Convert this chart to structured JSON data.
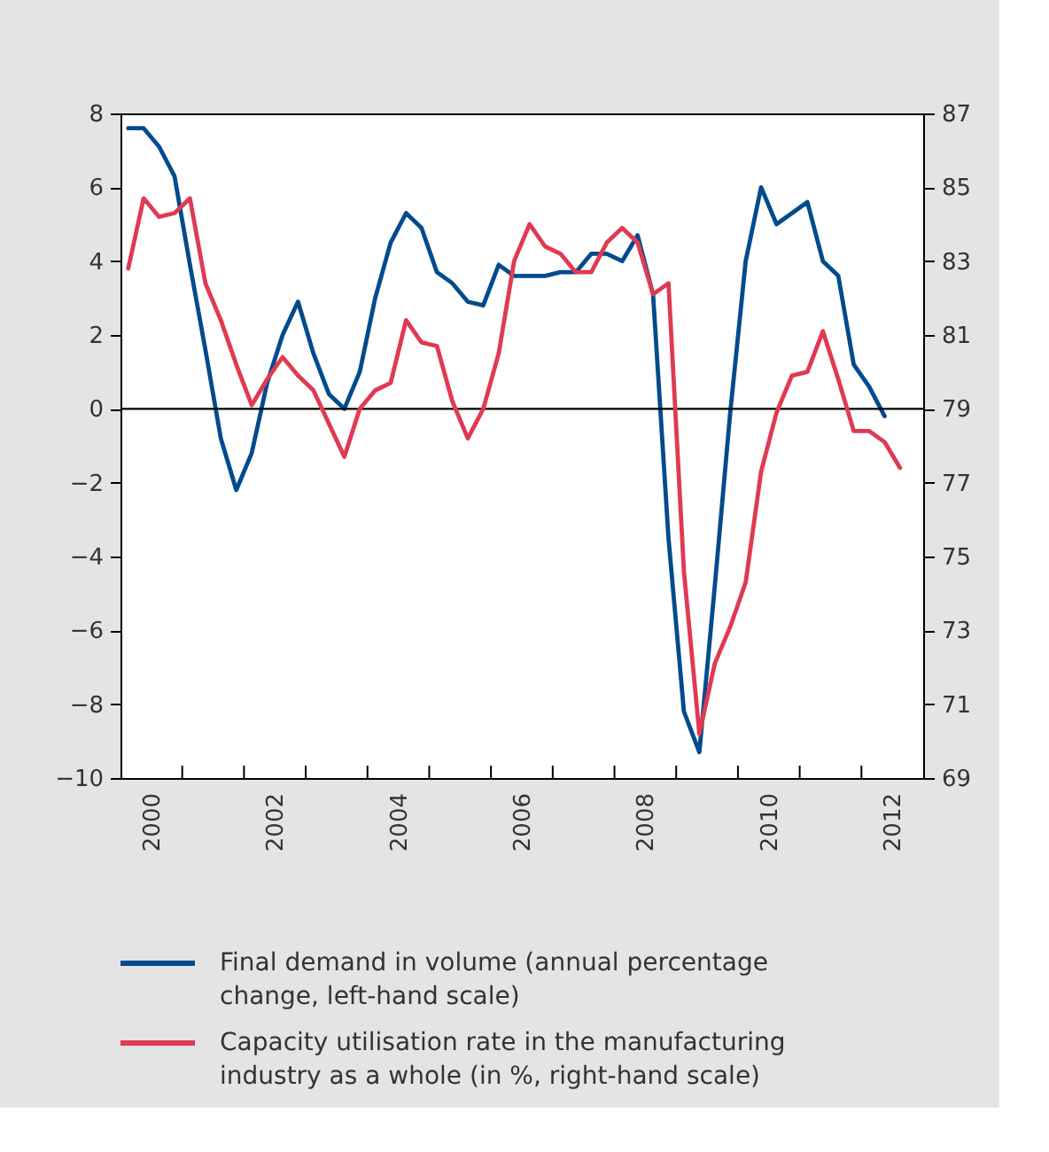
{
  "chart_data": {
    "type": "line",
    "xlim": [
      2000,
      2013
    ],
    "xticks": [
      {
        "value": 2000.5,
        "label": "2000"
      },
      {
        "value": 2001,
        "label": null
      },
      {
        "value": 2002,
        "label": null
      },
      {
        "value": 2002.5,
        "label": "2002"
      },
      {
        "value": 2003,
        "label": null
      },
      {
        "value": 2004,
        "label": null
      },
      {
        "value": 2004.5,
        "label": "2004"
      },
      {
        "value": 2005,
        "label": null
      },
      {
        "value": 2006,
        "label": null
      },
      {
        "value": 2006.5,
        "label": "2006"
      },
      {
        "value": 2007,
        "label": null
      },
      {
        "value": 2008,
        "label": null
      },
      {
        "value": 2008.5,
        "label": "2008"
      },
      {
        "value": 2009,
        "label": null
      },
      {
        "value": 2010,
        "label": null
      },
      {
        "value": 2010.5,
        "label": "2010"
      },
      {
        "value": 2011,
        "label": null
      },
      {
        "value": 2012,
        "label": null
      },
      {
        "value": 2012.5,
        "label": "2012"
      }
    ],
    "ylim": [
      -10,
      8
    ],
    "yticks": [
      -10,
      -8,
      -6,
      -4,
      -2,
      0,
      2,
      4,
      6,
      8
    ],
    "y2lim": [
      69,
      87
    ],
    "y2ticks": [
      69,
      71,
      73,
      75,
      77,
      79,
      81,
      83,
      85,
      87
    ],
    "ref_lines": [
      {
        "axis": "y",
        "value": 0,
        "color": "#000000"
      }
    ],
    "legend": "bottom",
    "series": [
      {
        "name": "Final demand in volume (annual percentage change, left-hand scale)",
        "color": "#004b8d",
        "axis": "y",
        "x": [
          2000.125,
          2000.375,
          2000.625,
          2000.875,
          2001.125,
          2001.375,
          2001.625,
          2001.875,
          2002.125,
          2002.375,
          2002.625,
          2002.875,
          2003.125,
          2003.375,
          2003.625,
          2003.875,
          2004.125,
          2004.375,
          2004.625,
          2004.875,
          2005.125,
          2005.375,
          2005.625,
          2005.875,
          2006.125,
          2006.375,
          2006.625,
          2006.875,
          2007.125,
          2007.375,
          2007.625,
          2007.875,
          2008.125,
          2008.375,
          2008.625,
          2008.875,
          2009.125,
          2009.375,
          2009.625,
          2009.875,
          2010.125,
          2010.375,
          2010.625,
          2010.875,
          2011.125,
          2011.375,
          2011.625,
          2011.875,
          2012.125,
          2012.375
        ],
        "values": [
          7.6,
          7.6,
          7.1,
          6.3,
          3.9,
          1.6,
          -0.8,
          -2.2,
          -1.2,
          0.7,
          2.0,
          2.9,
          1.5,
          0.4,
          0.0,
          1.0,
          3.0,
          4.5,
          5.3,
          4.9,
          3.7,
          3.4,
          2.9,
          2.8,
          3.9,
          3.6,
          3.6,
          3.6,
          3.7,
          3.7,
          4.2,
          4.2,
          4.0,
          4.7,
          3.1,
          -3.5,
          -8.2,
          -9.3,
          -4.8,
          -0.1,
          4.0,
          6.0,
          5.0,
          5.3,
          5.6,
          4.0,
          3.6,
          1.2,
          0.6,
          -0.2
        ]
      },
      {
        "name": "Capacity utilisation rate in the manufacturing industry as a whole (in %, right-hand scale)",
        "color": "#e03a52",
        "axis": "y2",
        "x": [
          2000.125,
          2000.375,
          2000.625,
          2000.875,
          2001.125,
          2001.375,
          2001.625,
          2001.875,
          2002.125,
          2002.375,
          2002.625,
          2002.875,
          2003.125,
          2003.375,
          2003.625,
          2003.875,
          2004.125,
          2004.375,
          2004.625,
          2004.875,
          2005.125,
          2005.375,
          2005.625,
          2005.875,
          2006.125,
          2006.375,
          2006.625,
          2006.875,
          2007.125,
          2007.375,
          2007.625,
          2007.875,
          2008.125,
          2008.375,
          2008.625,
          2008.875,
          2009.125,
          2009.375,
          2009.625,
          2009.875,
          2010.125,
          2010.375,
          2010.625,
          2010.875,
          2011.125,
          2011.375,
          2011.625,
          2011.875,
          2012.125,
          2012.375,
          2012.625
        ],
        "values": [
          82.8,
          84.7,
          84.2,
          84.3,
          84.7,
          82.4,
          81.4,
          80.2,
          79.1,
          79.8,
          80.4,
          79.9,
          79.5,
          78.6,
          77.7,
          79.0,
          79.5,
          79.7,
          81.4,
          80.8,
          80.7,
          79.2,
          78.2,
          79.0,
          80.5,
          83.0,
          84.0,
          83.4,
          83.2,
          82.7,
          82.7,
          83.5,
          83.9,
          83.5,
          82.1,
          82.4,
          74.6,
          70.2,
          72.1,
          73.1,
          74.3,
          77.3,
          78.9,
          79.9,
          80.0,
          81.1,
          79.8,
          78.4,
          78.4,
          78.1,
          77.4
        ]
      }
    ]
  }
}
